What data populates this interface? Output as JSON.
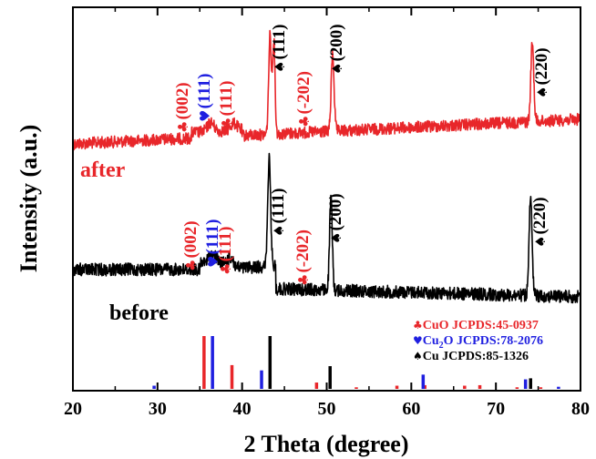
{
  "chart_data": {
    "type": "line",
    "title": "",
    "xlabel": "2 Theta (degree)",
    "ylabel": "Intensity (a.u.)",
    "xlim": [
      20,
      80
    ],
    "xticks": [
      20,
      30,
      40,
      50,
      60,
      70,
      80
    ],
    "y_axis_values_shown": false,
    "grid": false,
    "colors": {
      "cuo": "#e8262a",
      "cu2o": "#1f1fe0",
      "cu": "#000000"
    },
    "series": [
      {
        "name": "after",
        "color": "#e8262a",
        "peaks": [
          {
            "x": 35.6,
            "label": "(002)",
            "phase": "CuO",
            "symbol": "♣"
          },
          {
            "x": 36.4,
            "label": "(111)",
            "phase": "Cu2O",
            "symbol": "♥"
          },
          {
            "x": 38.9,
            "label": "(111)",
            "phase": "CuO",
            "symbol": "♣"
          },
          {
            "x": 43.4,
            "label": "(111)",
            "phase": "Cu",
            "symbol": "♠"
          },
          {
            "x": 48.7,
            "label": "(-202)",
            "phase": "CuO",
            "symbol": "♣"
          },
          {
            "x": 50.6,
            "label": "(200)",
            "phase": "Cu",
            "symbol": "♠"
          },
          {
            "x": 74.2,
            "label": "(220)",
            "phase": "Cu",
            "symbol": "♠"
          }
        ]
      },
      {
        "name": "before",
        "color": "#000000",
        "peaks": [
          {
            "x": 35.6,
            "label": "(002)",
            "phase": "CuO",
            "symbol": "♣"
          },
          {
            "x": 36.4,
            "label": "(111)",
            "phase": "Cu2O",
            "symbol": "♥"
          },
          {
            "x": 38.9,
            "label": "(111)",
            "phase": "CuO",
            "symbol": "♣"
          },
          {
            "x": 43.4,
            "label": "(111)",
            "phase": "Cu",
            "symbol": "♠"
          },
          {
            "x": 48.7,
            "label": "(-202)",
            "phase": "CuO",
            "symbol": "♣"
          },
          {
            "x": 50.6,
            "label": "(200)",
            "phase": "Cu",
            "symbol": "♠"
          },
          {
            "x": 74.2,
            "label": "(220)",
            "phase": "Cu",
            "symbol": "♠"
          }
        ]
      }
    ],
    "references": [
      {
        "phase": "CuO",
        "symbol": "♣",
        "color": "#e8262a",
        "label_parts": [
          "CuO JCPDS:45-0937"
        ],
        "sticks": [
          {
            "x": 35.5,
            "h": 1.0
          },
          {
            "x": 38.8,
            "h": 0.45
          },
          {
            "x": 48.8,
            "h": 0.12
          },
          {
            "x": 53.5,
            "h": 0.03
          },
          {
            "x": 58.3,
            "h": 0.06
          },
          {
            "x": 61.6,
            "h": 0.07
          },
          {
            "x": 66.3,
            "h": 0.06
          },
          {
            "x": 68.1,
            "h": 0.07
          },
          {
            "x": 72.5,
            "h": 0.03
          },
          {
            "x": 75.3,
            "h": 0.03
          }
        ]
      },
      {
        "phase": "Cu2O",
        "symbol": "♥",
        "color": "#1f1fe0",
        "label_parts": [
          "Cu",
          "2",
          "O JCPDS:78-2076"
        ],
        "sticks": [
          {
            "x": 29.6,
            "h": 0.06
          },
          {
            "x": 36.5,
            "h": 1.0
          },
          {
            "x": 42.3,
            "h": 0.35
          },
          {
            "x": 61.4,
            "h": 0.27
          },
          {
            "x": 73.5,
            "h": 0.18
          },
          {
            "x": 77.4,
            "h": 0.04
          }
        ]
      },
      {
        "phase": "Cu",
        "symbol": "♠",
        "color": "#000000",
        "label_parts": [
          "Cu JCPDS:85-1326"
        ],
        "sticks": [
          {
            "x": 43.3,
            "h": 1.0
          },
          {
            "x": 50.4,
            "h": 0.43
          },
          {
            "x": 74.1,
            "h": 0.2
          }
        ]
      }
    ]
  }
}
